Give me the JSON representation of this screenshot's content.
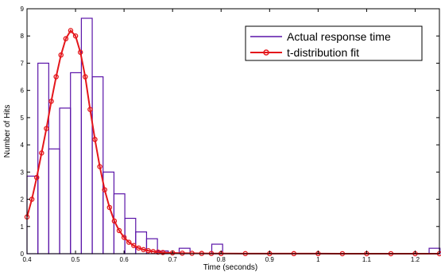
{
  "chart_data": {
    "type": "bar",
    "xlabel": "Time (seconds)",
    "ylabel": "Number of Hits",
    "xlim": [
      0.4,
      1.25
    ],
    "ylim": [
      0,
      9
    ],
    "xticks": [
      "0.4",
      "0.5",
      "0.6",
      "0.7",
      "0.8",
      "0.9",
      "1",
      "1.1",
      "1.2"
    ],
    "yticks": [
      "0",
      "1",
      "2",
      "3",
      "4",
      "5",
      "6",
      "7",
      "8",
      "9"
    ],
    "grid": false,
    "legend_position": "top-right",
    "colors": {
      "histogram": "#5a14a8",
      "fit": "#e4161b",
      "axis": "#000000"
    },
    "series": [
      {
        "name": "Actual response time",
        "kind": "histogram",
        "bin_width": 0.0224,
        "bin_starts": [
          0.4,
          0.4224,
          0.4448,
          0.4672,
          0.4896,
          0.512,
          0.5344,
          0.5568,
          0.5792,
          0.6016,
          0.624,
          0.6464,
          0.6688,
          0.6912,
          0.7136,
          0.736,
          0.7584,
          0.7808,
          0.8032,
          0.8256,
          0.848,
          0.8704,
          0.8928,
          0.9152,
          0.9376,
          0.96,
          0.9824,
          1.0048,
          1.0272,
          1.0496,
          1.072,
          1.0944,
          1.1168,
          1.1392,
          1.1616,
          1.184,
          1.2064,
          1.2288
        ],
        "values": [
          2.85,
          7.0,
          3.85,
          5.35,
          6.65,
          8.65,
          6.5,
          3.0,
          2.2,
          1.3,
          0.8,
          0.55,
          0.1,
          0.0,
          0.2,
          0.0,
          0.0,
          0.35,
          0.0,
          0.0,
          0.0,
          0.0,
          0.0,
          0.0,
          0.0,
          0.0,
          0.0,
          0.0,
          0.0,
          0.0,
          0.0,
          0.0,
          0.0,
          0.0,
          0.0,
          0.0,
          0.0,
          0.2
        ]
      },
      {
        "name": "t-distribution fit",
        "kind": "line",
        "x": [
          0.4,
          0.41,
          0.42,
          0.43,
          0.44,
          0.45,
          0.46,
          0.47,
          0.48,
          0.49,
          0.5,
          0.51,
          0.52,
          0.53,
          0.54,
          0.55,
          0.56,
          0.57,
          0.58,
          0.59,
          0.6,
          0.61,
          0.62,
          0.63,
          0.64,
          0.65,
          0.66,
          0.67,
          0.68,
          0.7,
          0.72,
          0.74,
          0.76,
          0.78,
          0.8,
          0.85,
          0.9,
          0.95,
          1.0,
          1.05,
          1.1,
          1.15,
          1.2,
          1.25
        ],
        "values": [
          1.35,
          2.0,
          2.8,
          3.7,
          4.6,
          5.6,
          6.5,
          7.3,
          7.9,
          8.2,
          8.0,
          7.4,
          6.5,
          5.3,
          4.2,
          3.2,
          2.35,
          1.7,
          1.2,
          0.85,
          0.6,
          0.42,
          0.3,
          0.21,
          0.15,
          0.11,
          0.08,
          0.06,
          0.045,
          0.03,
          0.02,
          0.015,
          0.01,
          0.008,
          0.006,
          0.004,
          0.003,
          0.002,
          0.002,
          0.001,
          0.001,
          0.001,
          0.001,
          0.001
        ]
      }
    ]
  }
}
